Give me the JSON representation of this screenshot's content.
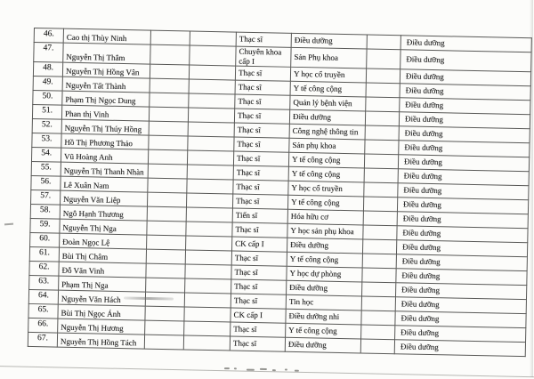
{
  "page": {
    "paper_color": "#fcfcfa",
    "ink_color": "#1c1c1c",
    "grid_color": "#585856"
  },
  "table": {
    "row_range": "46-67",
    "rows": [
      {
        "no": "46.",
        "name": "Cao thị Thùy Ninh",
        "degree": "Thạc sĩ",
        "field": "Điều dưỡng",
        "specialty": "Điều dưỡng"
      },
      {
        "no": "47.",
        "name": "Nguyễn Thị Thắm",
        "degree": "Chuyên khoa cấp I",
        "field": "Sản Phụ khoa",
        "specialty": "Điều dưỡng"
      },
      {
        "no": "48.",
        "name": "Nguyễn Thị Hồng Vân",
        "degree": "Thạc sĩ",
        "field": "Y học cổ truyền",
        "specialty": "Điều dưỡng"
      },
      {
        "no": "49.",
        "name": "Nguyễn Tất Thành",
        "degree": "Thạc sĩ",
        "field": "Y tế công cộng",
        "specialty": "Điều dưỡng"
      },
      {
        "no": "50.",
        "name": "Phạm Thị Ngọc Dung",
        "degree": "Thạc sĩ",
        "field": "Quản lý bệnh viện",
        "specialty": "Điều dưỡng"
      },
      {
        "no": "51.",
        "name": "Phan thị Vinh",
        "degree": "Thạc sĩ",
        "field": "Điều dưỡng",
        "specialty": "Điều dưỡng"
      },
      {
        "no": "52.",
        "name": "Nguyễn Thị Thúy Hồng",
        "degree": "Thạc sĩ",
        "field": "Công nghệ thông tin",
        "specialty": "Điều dưỡng"
      },
      {
        "no": "53.",
        "name": "Hồ Thị Phương Thảo",
        "degree": "Thạc sĩ",
        "field": "Sản phụ khoa",
        "specialty": "Điều dưỡng"
      },
      {
        "no": "54.",
        "name": "Vũ Hoàng Anh",
        "degree": "Thạc sĩ",
        "field": "Y tế công cộng",
        "specialty": "Điều dưỡng"
      },
      {
        "no": "55.",
        "name": "Nguyễn Thị Thanh Nhàn",
        "degree": "Thạc sĩ",
        "field": "Y tế công cộng",
        "specialty": "Điều dưỡng"
      },
      {
        "no": "56.",
        "name": "Lê Xuân Nam",
        "degree": "Thạc sĩ",
        "field": "Y học cổ truyền",
        "specialty": "Điều dưỡng"
      },
      {
        "no": "57.",
        "name": "Nguyễn Văn Liệp",
        "degree": "Thạc sĩ",
        "field": "Y tế công cộng",
        "specialty": "Điều dưỡng"
      },
      {
        "no": "58.",
        "name": "Ngô Hạnh Thương",
        "degree": "Tiến sĩ",
        "field": "Hóa hữu cơ",
        "specialty": "Điều dưỡng"
      },
      {
        "no": "59.",
        "name": "Nguyễn Thị Nga",
        "degree": "Thạc sĩ",
        "field": "Y học sản phụ khoa",
        "specialty": "Điều dưỡng"
      },
      {
        "no": "60.",
        "name": "Đoàn Ngọc Lệ",
        "degree": "CK cấp I",
        "field": "Điều dưỡng",
        "specialty": "Điều dưỡng"
      },
      {
        "no": "61.",
        "name": "Bùi Thị Châm",
        "degree": "Thạc sĩ",
        "field": "Y tế công cộng",
        "specialty": "Điều dưỡng"
      },
      {
        "no": "62.",
        "name": "Đỗ Văn Vinh",
        "degree": "Thạc sĩ",
        "field": "Y học dự phòng",
        "specialty": "Điều dưỡng"
      },
      {
        "no": "63.",
        "name": "Phạm Thị Nga",
        "degree": "Thạc sĩ",
        "field": "Điều dưỡng",
        "specialty": "Điều dưỡng"
      },
      {
        "no": "64.",
        "name": "Nguyễn Văn Hách",
        "degree": "Thạc sĩ",
        "field": "Tin học",
        "specialty": "Điều dưỡng"
      },
      {
        "no": "65.",
        "name": "Bùi Thị Ngọc Ánh",
        "degree": "CK cấp I",
        "field": "Điều dưỡng nhi",
        "specialty": "Điều dưỡng"
      },
      {
        "no": "66.",
        "name": "Nguyễn Thị Hương",
        "degree": "Thạc sĩ",
        "field": "Y tế công cộng",
        "specialty": "Điều dưỡng"
      },
      {
        "no": "67.",
        "name": "Nguyễn Thị Hồng Tách",
        "degree": "Thạc sĩ",
        "field": "Điều dưỡng",
        "specialty": "Điều dưỡng"
      }
    ]
  }
}
